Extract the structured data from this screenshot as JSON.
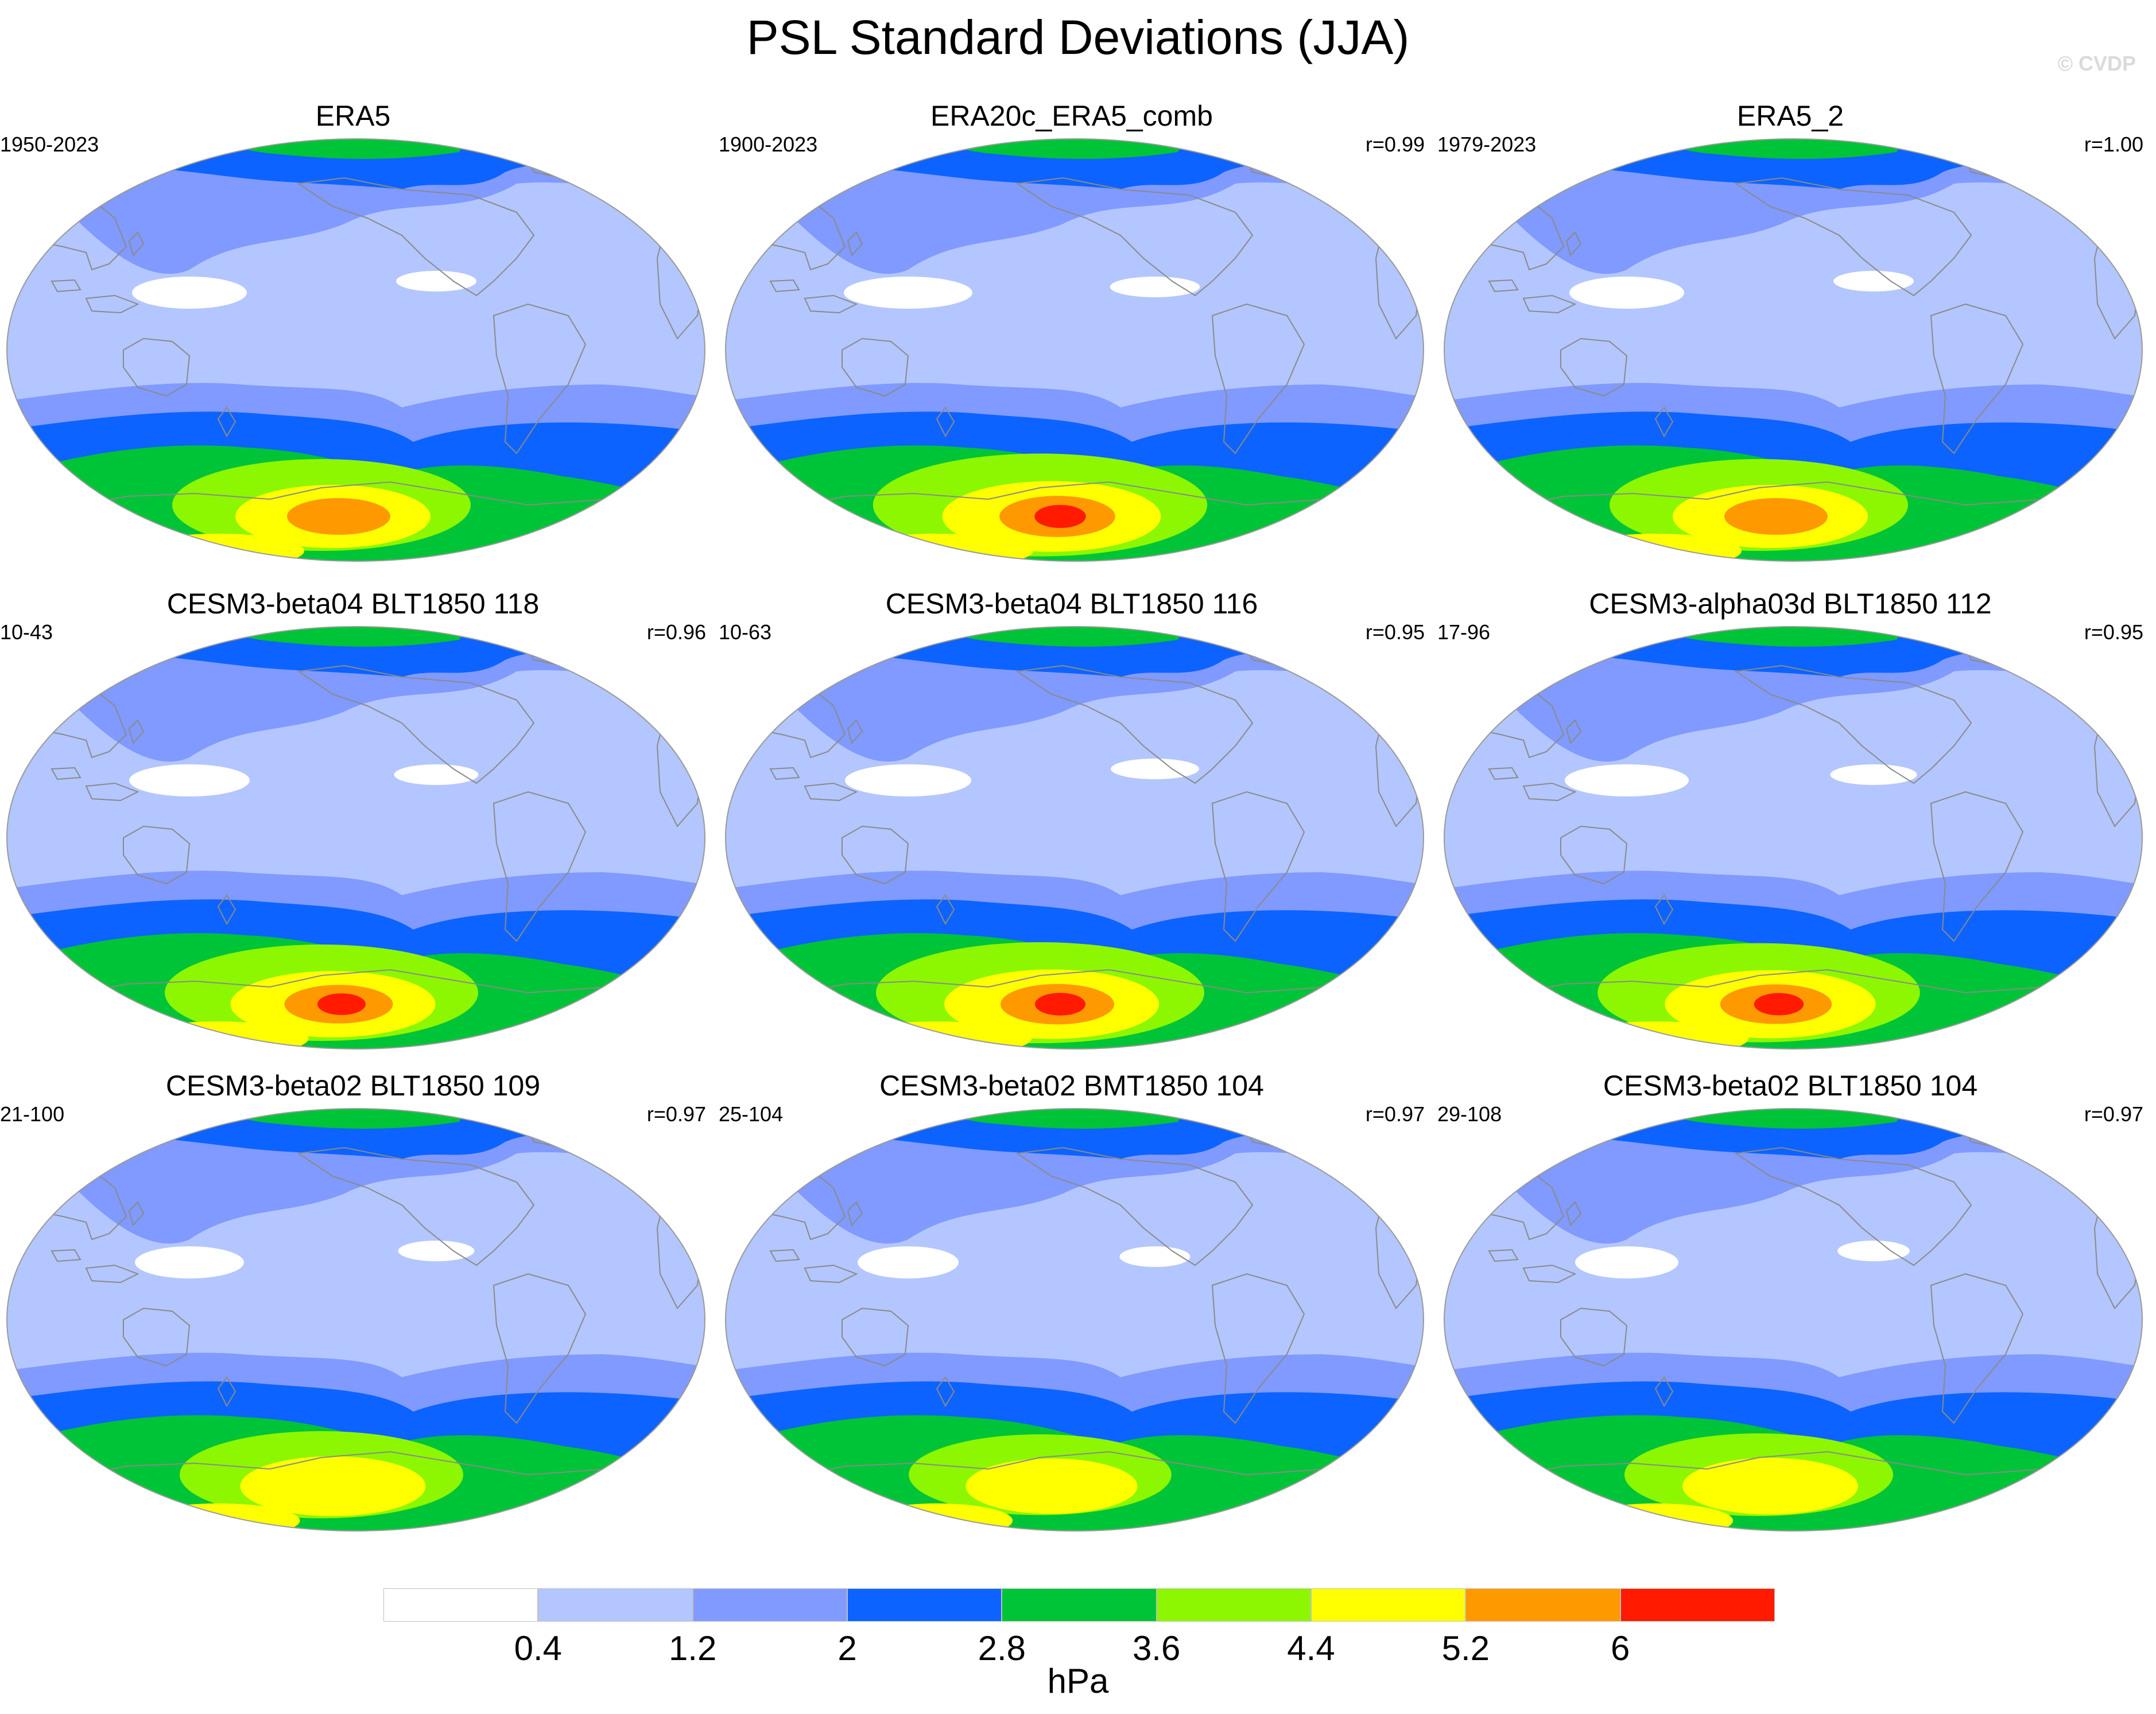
{
  "title": "PSL Standard Deviations (JJA)",
  "watermark": "© CVDP",
  "colors": {
    "levels": [
      "#ffffff",
      "#b3c6ff",
      "#809aff",
      "#0d63ff",
      "#00c437",
      "#8cf700",
      "#ffff00",
      "#ff9900",
      "#ff1a00"
    ],
    "land_outline": "#8a8a8a",
    "map_border": "#9a9a9a"
  },
  "panels": [
    {
      "title": "ERA5",
      "years": "1950-2023",
      "r": "",
      "s": 1.0
    },
    {
      "title": "ERA20c_ERA5_comb",
      "years": "1900-2023",
      "r": "r=0.99",
      "s": 1.12
    },
    {
      "title": "ERA5_2",
      "years": "1979-2023",
      "r": "r=1.00",
      "s": 1.0
    },
    {
      "title": "CESM3-beta04 BLT1850 118",
      "years": "10-43",
      "r": "r=0.96",
      "s": 1.05
    },
    {
      "title": "CESM3-beta04 BLT1850 116",
      "years": "10-63",
      "r": "r=0.95",
      "s": 1.1
    },
    {
      "title": "CESM3-alpha03d BLT1850 112",
      "years": "17-96",
      "r": "r=0.95",
      "s": 1.08
    },
    {
      "title": "CESM3-beta02 BLT1850 109",
      "years": "21-100",
      "r": "r=0.97",
      "s": 0.95
    },
    {
      "title": "CESM3-beta02 BMT1850 104",
      "years": "25-104",
      "r": "r=0.97",
      "s": 0.88
    },
    {
      "title": "CESM3-beta02 BLT1850 104",
      "years": "29-108",
      "r": "r=0.97",
      "s": 0.9
    }
  ],
  "colorbar": {
    "labels": [
      "0.4",
      "1.2",
      "2",
      "2.8",
      "3.6",
      "4.4",
      "5.2",
      "6"
    ],
    "units": "hPa"
  }
}
